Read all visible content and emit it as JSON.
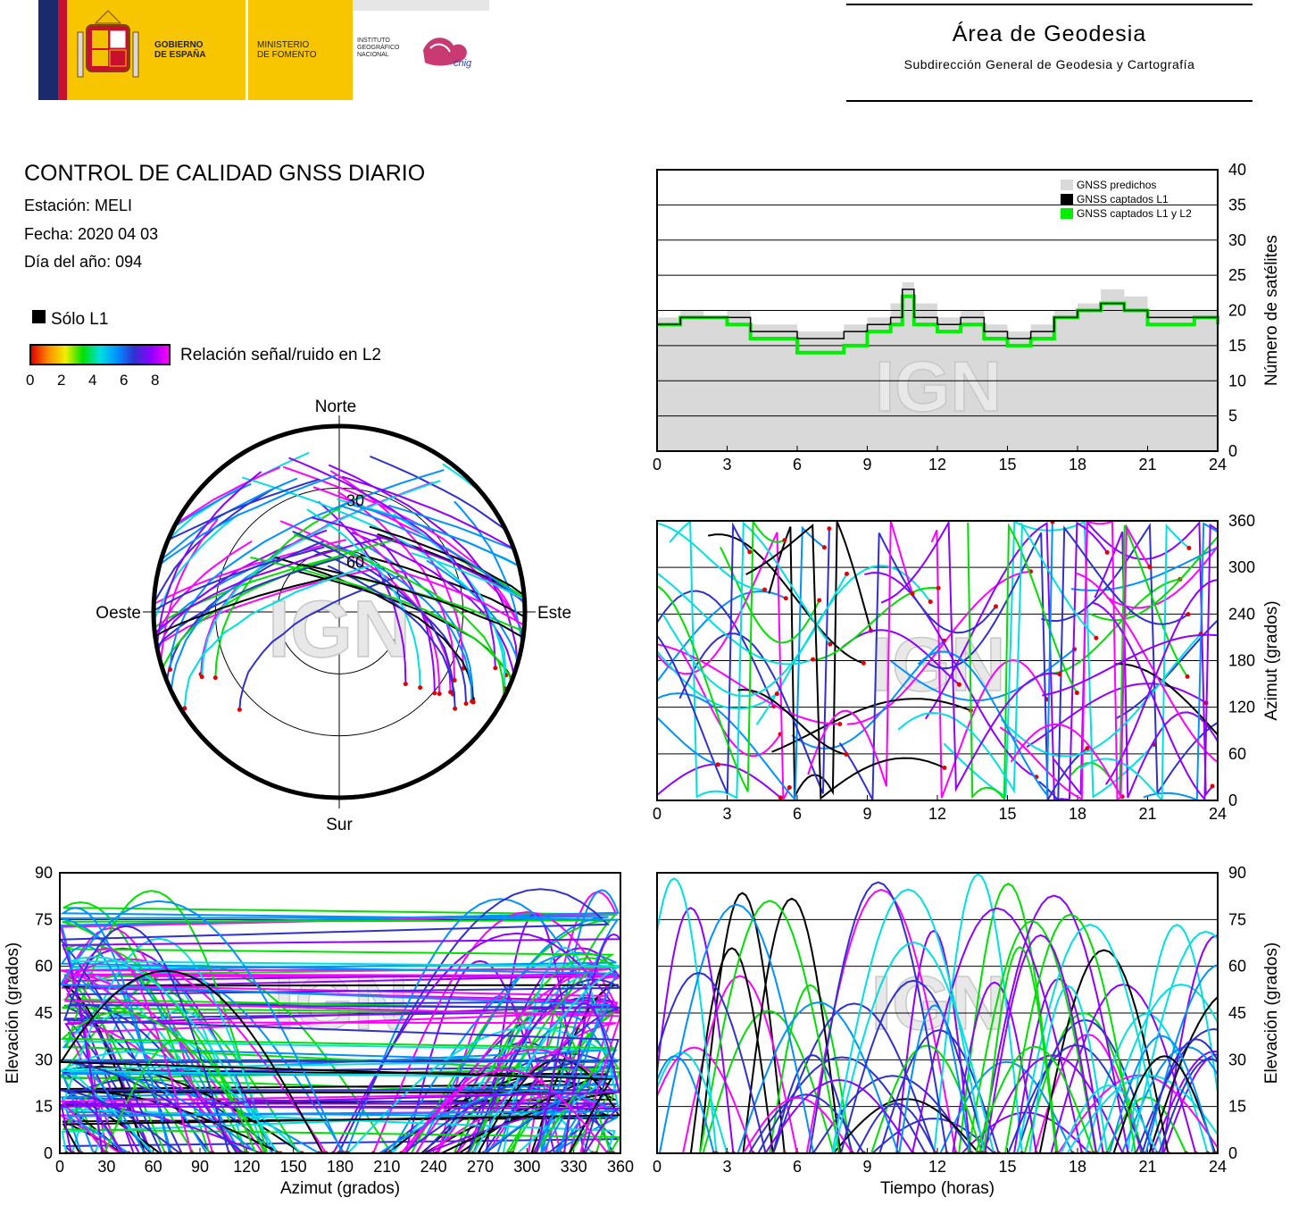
{
  "header": {
    "gobierno": [
      "GOBIERNO",
      "DE ESPAÑA"
    ],
    "ministerio": [
      "MINISTERIO",
      "DE FOMENTO"
    ],
    "instituto": [
      "INSTITUTO",
      "GEOGRÁFICO",
      "NACIONAL"
    ],
    "cnig": "cnig",
    "area_title": "Área de Geodesia",
    "area_subtitle": "Subdirección General de Geodesia y Cartografía"
  },
  "info": {
    "title": "CONTROL DE CALIDAD GNSS DIARIO",
    "station": "Estación: MELI",
    "date": "Fecha: 2020 04 03",
    "doy": "Día del año: 094"
  },
  "legend": {
    "solo_l1": "Sólo L1",
    "snr_label": "Relación señal/ruido en L2",
    "snr_ticks": [
      "0",
      "2",
      "4",
      "6",
      "8"
    ]
  },
  "watermark": "IGN",
  "colors": {
    "snr_scale": [
      "#e00000",
      "#ff8c00",
      "#f0f000",
      "#00e000",
      "#00e0e0",
      "#0090ff",
      "#3030d0",
      "#9000ff",
      "#ff00ff"
    ],
    "predicted": "#d9d9d9",
    "captured_l1": "#000000",
    "captured_l1l2": "#00ee00"
  },
  "chart_data": [
    {
      "type": "area",
      "id": "satellite-count",
      "x_ticks": [
        "0",
        "3",
        "6",
        "9",
        "12",
        "15",
        "18",
        "21",
        "24"
      ],
      "y_ticks": [
        "0",
        "5",
        "10",
        "15",
        "20",
        "25",
        "30",
        "35",
        "40"
      ],
      "ylabel": "Número de satélites",
      "xlim": [
        0,
        24
      ],
      "ylim": [
        0,
        40
      ],
      "legend": [
        "GNSS predichos",
        "GNSS captados L1",
        "GNSS captados L1 y L2"
      ],
      "legend_position": "top-right",
      "grid": true,
      "x": [
        0,
        1,
        2,
        3,
        4,
        5,
        6,
        7,
        8,
        9,
        10,
        10.5,
        11,
        12,
        13,
        14,
        15,
        16,
        17,
        18,
        19,
        20,
        21,
        22,
        23,
        24
      ],
      "series": [
        {
          "name": "GNSS predichos",
          "values": [
            19,
            20,
            19,
            20,
            18,
            18,
            17,
            17,
            18,
            19,
            21,
            24,
            21,
            19,
            20,
            18,
            17,
            18,
            20,
            21,
            23,
            22,
            20,
            20,
            20,
            19
          ]
        },
        {
          "name": "GNSS captados L1",
          "values": [
            18,
            19,
            19,
            19,
            17,
            17,
            16,
            16,
            17,
            18,
            19,
            23,
            19,
            18,
            19,
            17,
            16,
            17,
            19,
            20,
            21,
            20,
            19,
            19,
            19,
            18
          ]
        },
        {
          "name": "GNSS captados L1 y L2",
          "values": [
            18,
            19,
            19,
            18,
            16,
            16,
            14,
            14,
            15,
            17,
            18,
            22,
            18,
            17,
            18,
            16,
            15,
            16,
            19,
            20,
            21,
            20,
            18,
            18,
            19,
            18
          ]
        }
      ]
    },
    {
      "type": "scatter",
      "id": "skyplot",
      "labels": {
        "north": "Norte",
        "south": "Sur",
        "east": "Este",
        "west": "Oeste"
      },
      "elevation_rings": [
        "30",
        "60"
      ]
    },
    {
      "type": "scatter",
      "id": "azimuth-time",
      "x_ticks": [
        "0",
        "3",
        "6",
        "9",
        "12",
        "15",
        "18",
        "21",
        "24"
      ],
      "y_ticks": [
        "0",
        "60",
        "120",
        "180",
        "240",
        "300",
        "360"
      ],
      "ylabel": "Azimut (grados)",
      "xlim": [
        0,
        24
      ],
      "ylim": [
        0,
        360
      ],
      "grid": true
    },
    {
      "type": "scatter",
      "id": "elevation-azimuth",
      "x_ticks": [
        "0",
        "30",
        "60",
        "90",
        "120",
        "150",
        "180",
        "210",
        "240",
        "270",
        "300",
        "330",
        "360"
      ],
      "y_ticks": [
        "0",
        "15",
        "30",
        "45",
        "60",
        "75",
        "90"
      ],
      "xlabel": "Azimut (grados)",
      "ylabel": "Elevación (grados)",
      "xlim": [
        0,
        360
      ],
      "ylim": [
        0,
        90
      ],
      "grid": true
    },
    {
      "type": "scatter",
      "id": "elevation-time",
      "x_ticks": [
        "0",
        "3",
        "6",
        "9",
        "12",
        "15",
        "18",
        "21",
        "24"
      ],
      "y_ticks": [
        "0",
        "15",
        "30",
        "45",
        "60",
        "75",
        "90"
      ],
      "xlabel": "Tiempo (horas)",
      "ylabel": "Elevación (grados)",
      "xlim": [
        0,
        24
      ],
      "ylim": [
        0,
        90
      ],
      "grid": true
    }
  ]
}
